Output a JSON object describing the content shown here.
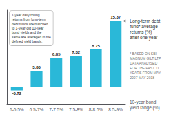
{
  "chart_data": {
    "type": "bar",
    "categories": [
      "6-6.5%",
      "6.5-7%",
      "7-7.5%",
      "7.5-8%",
      "8-8.5%",
      "8.5-9%"
    ],
    "values": [
      -0.72,
      3.8,
      6.85,
      7.32,
      8.75,
      15.37
    ],
    "value_labels": [
      "-0.72",
      "3.80",
      "6.85",
      "7.32",
      "8.75",
      "15.37"
    ],
    "color": "#2ab8d8",
    "ylim": [
      -4,
      18
    ],
    "xlabel": "10-year bond\nyield range (%)",
    "annotations": [
      "1-year daily rolling\nreturns from long-term\ndebt funds are matched\nto 1-year-old 10-year\nbond yields and the\nsame are averaged in the\ndefined yield bands.",
      "Long-term debt\nfund* average\nreturns (%)\nafter one year",
      "* BASED ON SBI\nMAGNUM GILT LTP\nDATA ANALYSED\nFOR THE PAST 11\nYEARS FROM MAY\n2007-MAY 2018"
    ],
    "data_labels": true,
    "tick_labels": "x",
    "grid": false
  }
}
